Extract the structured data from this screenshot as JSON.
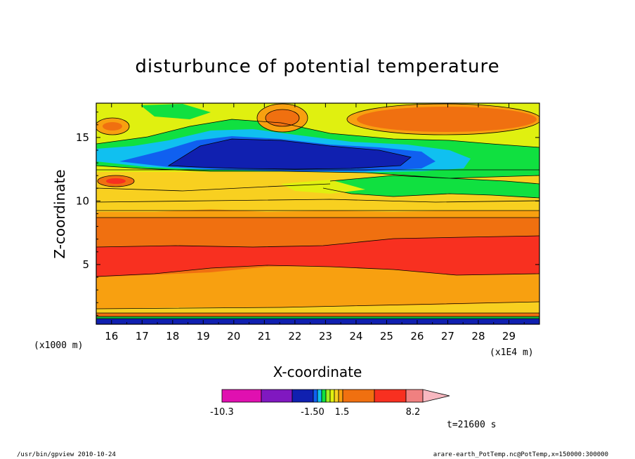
{
  "chart_data": {
    "type": "heatmap",
    "title": "disturbunce of potential temperature",
    "xlabel": "X-coordinate",
    "ylabel": "Z-coordinate",
    "x_unit_left": "(x1000 m)",
    "x_unit_right": "(x1E4 m)",
    "xlim": [
      15.5,
      30
    ],
    "ylim": [
      0.3,
      17.7
    ],
    "x_ticks": [
      "16",
      "17",
      "18",
      "19",
      "20",
      "21",
      "22",
      "23",
      "24",
      "25",
      "26",
      "27",
      "28",
      "29"
    ],
    "y_ticks": [
      "5",
      "10",
      "15"
    ],
    "time_label": "t=21600 s",
    "colorbar": {
      "min_label": "-10.3",
      "mid_labels": [
        "-1.50",
        "1.5"
      ],
      "max_label": "8.2",
      "colors": [
        "#e010b0",
        "#8018c0",
        "#1020b0",
        "#1060f0",
        "#10c0f0",
        "#10e040",
        "#a0f020",
        "#e0f010",
        "#f8d020",
        "#f8a010",
        "#f07010",
        "#f83020",
        "#f08080",
        "#f8b8c0"
      ]
    }
  },
  "footer": {
    "left": "/usr/bin/gpview  2010-10-24",
    "right": "arare-earth_PotTemp.nc@PotTemp,x=150000:300000"
  }
}
